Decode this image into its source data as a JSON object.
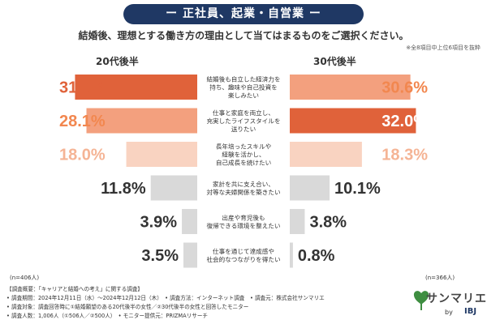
{
  "title": "ー 正社員、起業・自営業 ー",
  "question": "結婚後、理想とする働き方の理由として当てはまるものをご選択ください。",
  "note": "※全8項目中上位6項目を抜粋",
  "left_group": "20代後半",
  "right_group": "30代後半",
  "left_n": "(n=406人)",
  "right_n": "(n=366人)",
  "footer": {
    "line1": "【調査概要：「キャリアと結婚への考え」に関する調査】",
    "line2": "• 調査期間：2024年12月11日（水）〜2024年12月12日（木）　• 調査方法：インターネット調査　• 調査元：株式会社サンマリエ",
    "line3": "• 調査対象：調査回答時に①結婚願望のある20代後半の女性／②30代後半の女性と回答したモニター",
    "line4": "• 調査人数：1,006人（①506人／②500人）　• モニター提供元：PRIZMAリサーチ"
  },
  "logo": {
    "name": "サンマリエ",
    "by": "by",
    "brand": "IBJ"
  },
  "colors": {
    "dark": "#e0623a",
    "mid": "#f3a07e",
    "light": "#f9d3c1",
    "gray": "#d9d9d9",
    "title_bg": "#1f3864"
  },
  "chart_data": {
    "type": "bar",
    "categories": [
      [
        "結婚後も自立した経済力を",
        "持ち、趣味や自己投資を",
        "楽しみたい"
      ],
      [
        "仕事と家庭を両立し、",
        "充実したライフスタイルを",
        "送りたい"
      ],
      [
        "長年培ったスキルや",
        "経験を活かし、",
        "自己成長を続けたい"
      ],
      [
        "家計を共に支え合い、",
        "対等な夫婦関係を築きたい"
      ],
      [
        "出産や育児後も",
        "復帰できる環境を整えたい"
      ],
      [
        "仕事を通じて達成感や",
        "社会的なつながりを得たい"
      ]
    ],
    "series": [
      {
        "name": "20代後半",
        "values": [
          31.0,
          28.1,
          18.0,
          11.8,
          3.9,
          3.5
        ]
      },
      {
        "name": "30代後半",
        "values": [
          30.6,
          32.0,
          18.3,
          10.1,
          3.8,
          0.8
        ]
      }
    ],
    "unit": "%",
    "value_labels": {
      "left": [
        "31.0%",
        "28.1%",
        "18.0%",
        "11.8%",
        "3.9%",
        "3.5%"
      ],
      "right": [
        "30.6%",
        "32.0%",
        "18.3%",
        "10.1%",
        "3.8%",
        "0.8%"
      ]
    },
    "bar_colors": {
      "left": [
        "dark",
        "mid",
        "light",
        "gray",
        "gray",
        "gray"
      ],
      "right": [
        "mid",
        "dark",
        "light",
        "gray",
        "gray",
        "gray"
      ]
    },
    "xlim": [
      0,
      35
    ]
  }
}
